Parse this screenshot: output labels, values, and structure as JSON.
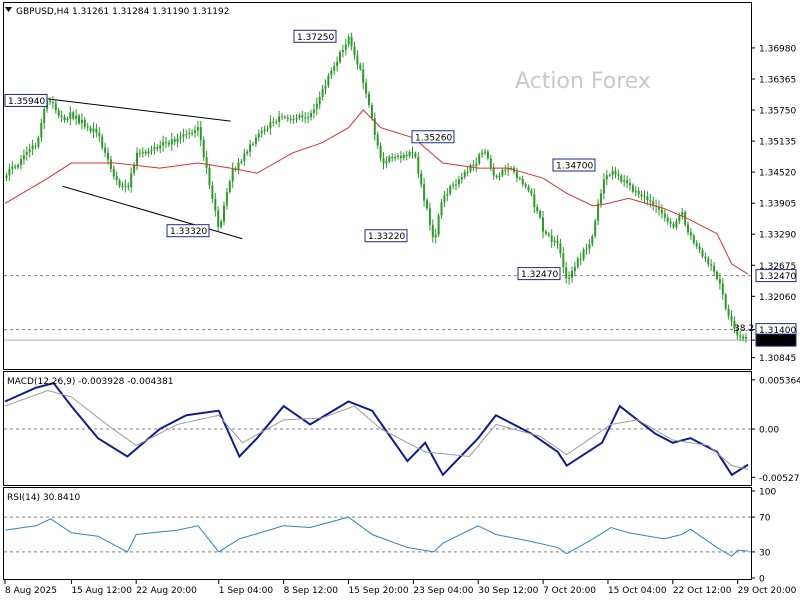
{
  "header": {
    "collapse_icon": "triangle-down-icon",
    "symbol_info": "GBPUSD,H4  1.31261 1.31284 1.31190 1.31192"
  },
  "watermark": "Action Forex",
  "colors": {
    "candle": "#2b9a2b",
    "ma": "#e03030",
    "macd_main": "#0b1f8f",
    "macd_signal": "#9c9c9c",
    "rsi": "#2f86c9",
    "label_border": "#1c2b8c",
    "grid_dash": "#808080"
  },
  "chart_data": [
    {
      "type": "candlestick",
      "title": "GBPUSD,H4",
      "ohlc_last": {
        "open": 1.31261,
        "high": 1.31284,
        "low": 1.3119,
        "close": 1.31192
      },
      "y_ticks": [
        "1.36980",
        "1.36365",
        "1.35750",
        "1.35135",
        "1.34520",
        "1.33905",
        "1.33290",
        "1.32675",
        "1.32060",
        "1.31400",
        "1.31192",
        "1.30845"
      ],
      "ylim": [
        1.3062,
        1.3787
      ],
      "price_tags": [
        "1.32470",
        "1.31400",
        "1.31192"
      ],
      "horizontal_levels": [
        1.3247,
        1.314
      ],
      "level_annotation": "38.2",
      "annotations": [
        {
          "text": "1.35940",
          "value": 1.3594
        },
        {
          "text": "1.37250",
          "value": 1.3725
        },
        {
          "text": "1.35260",
          "value": 1.3526
        },
        {
          "text": "1.33320",
          "value": 1.3332
        },
        {
          "text": "1.33220",
          "value": 1.3322
        },
        {
          "text": "1.34700",
          "value": 1.347
        },
        {
          "text": "1.32470",
          "value": 1.3247
        }
      ],
      "close_path": [
        {
          "date": "8 Aug 2025 00:00",
          "close": 1.344
        },
        {
          "date": "11 Aug 2025 12:00",
          "close": 1.35
        },
        {
          "date": "12 Aug 2025 20:00",
          "close": 1.3594
        },
        {
          "date": "14 Aug 2025 12:00",
          "close": 1.355
        },
        {
          "date": "15 Aug 2025 12:00",
          "close": 1.356
        },
        {
          "date": "18 Aug 2025 12:00",
          "close": 1.352
        },
        {
          "date": "20 Aug 2025 12:00",
          "close": 1.343
        },
        {
          "date": "21 Aug 2025 20:00",
          "close": 1.341
        },
        {
          "date": "22 Aug 2025 20:00",
          "close": 1.348
        },
        {
          "date": "27 Aug 2025 12:00",
          "close": 1.351
        },
        {
          "date": "28 Aug 2025 12:00",
          "close": 1.352
        },
        {
          "date": "29 Aug 2025 20:00",
          "close": 1.353
        },
        {
          "date": "1 Sep 2025 04:00",
          "close": 1.3332
        },
        {
          "date": "2 Sep 2025 12:00",
          "close": 1.344
        },
        {
          "date": "5 Sep 2025 12:00",
          "close": 1.352
        },
        {
          "date": "8 Sep 2025 12:00",
          "close": 1.356
        },
        {
          "date": "11 Sep 2025 12:00",
          "close": 1.357
        },
        {
          "date": "12 Sep 2025 20:00",
          "close": 1.362
        },
        {
          "date": "15 Sep 2025 20:00",
          "close": 1.3725
        },
        {
          "date": "17 Sep 2025 12:00",
          "close": 1.364
        },
        {
          "date": "19 Sep 2025 12:00",
          "close": 1.348
        },
        {
          "date": "22 Sep 2025 12:00",
          "close": 1.349
        },
        {
          "date": "23 Sep 2025 04:00",
          "close": 1.35
        },
        {
          "date": "25 Sep 2025 12:00",
          "close": 1.3322
        },
        {
          "date": "26 Sep 2025 12:00",
          "close": 1.341
        },
        {
          "date": "29 Sep 2025 20:00",
          "close": 1.347
        },
        {
          "date": "1 Oct 2025 04:00",
          "close": 1.35
        },
        {
          "date": "2 Oct 2025 12:00",
          "close": 1.344
        },
        {
          "date": "3 Oct 2025 20:00",
          "close": 1.347
        },
        {
          "date": "6 Oct 2025 12:00",
          "close": 1.341
        },
        {
          "date": "8 Oct 2025 04:00",
          "close": 1.333
        },
        {
          "date": "9 Oct 2025 12:00",
          "close": 1.332
        },
        {
          "date": "10 Oct 2025 12:00",
          "close": 1.3247
        },
        {
          "date": "13 Oct 2025 12:00",
          "close": 1.333
        },
        {
          "date": "14 Oct 2025 04:00",
          "close": 1.341
        },
        {
          "date": "15 Oct 2025 12:00",
          "close": 1.345
        },
        {
          "date": "16 Oct 2025 20:00",
          "close": 1.343
        },
        {
          "date": "20 Oct 2025 04:00",
          "close": 1.338
        },
        {
          "date": "22 Oct 2025 12:00",
          "close": 1.334
        },
        {
          "date": "23 Oct 2025 12:00",
          "close": 1.337
        },
        {
          "date": "24 Oct 2025 04:00",
          "close": 1.333
        },
        {
          "date": "27 Oct 2025 12:00",
          "close": 1.324
        },
        {
          "date": "28 Oct 2025 20:00",
          "close": 1.316
        },
        {
          "date": "29 Oct 2025 20:00",
          "close": 1.312
        },
        {
          "date": "31 Oct 2025 00:00",
          "close": 1.3119
        }
      ],
      "ma_path": [
        {
          "date": "8 Aug 2025 00:00",
          "value": 1.339
        },
        {
          "date": "12 Aug 2025 20:00",
          "value": 1.344
        },
        {
          "date": "15 Aug 2025 12:00",
          "value": 1.347
        },
        {
          "date": "20 Aug 2025 12:00",
          "value": 1.347
        },
        {
          "date": "25 Aug 2025 12:00",
          "value": 1.346
        },
        {
          "date": "29 Aug 2025 20:00",
          "value": 1.347
        },
        {
          "date": "2 Sep 2025 12:00",
          "value": 1.346
        },
        {
          "date": "5 Sep 2025 12:00",
          "value": 1.345
        },
        {
          "date": "9 Sep 2025 12:00",
          "value": 1.349
        },
        {
          "date": "12 Sep 2025 20:00",
          "value": 1.351
        },
        {
          "date": "15 Sep 2025 20:00",
          "value": 1.354
        },
        {
          "date": "17 Sep 2025 12:00",
          "value": 1.3575
        },
        {
          "date": "19 Sep 2025 12:00",
          "value": 1.354
        },
        {
          "date": "23 Sep 2025 04:00",
          "value": 1.352
        },
        {
          "date": "26 Sep 2025 12:00",
          "value": 1.347
        },
        {
          "date": "30 Sep 2025 12:00",
          "value": 1.346
        },
        {
          "date": "3 Oct 2025 20:00",
          "value": 1.346
        },
        {
          "date": "7 Oct 2025 20:00",
          "value": 1.344
        },
        {
          "date": "10 Oct 2025 12:00",
          "value": 1.341
        },
        {
          "date": "13 Oct 2025 12:00",
          "value": 1.3385
        },
        {
          "date": "15 Oct 2025 04:00",
          "value": 1.339
        },
        {
          "date": "17 Oct 2025 12:00",
          "value": 1.34
        },
        {
          "date": "21 Oct 2025 12:00",
          "value": 1.338
        },
        {
          "date": "24 Oct 2025 04:00",
          "value": 1.336
        },
        {
          "date": "27 Oct 2025 12:00",
          "value": 1.333
        },
        {
          "date": "29 Oct 2025 04:00",
          "value": 1.327
        },
        {
          "date": "31 Oct 2025 00:00",
          "value": 1.325
        }
      ],
      "trendlines": [
        {
          "from": {
            "date": "12 Aug 2025 20:00",
            "value": 1.3597
          },
          "to": {
            "date": "2 Sep 2025 12:00",
            "value": 1.3553
          }
        },
        {
          "from": {
            "date": "14 Aug 2025 12:00",
            "value": 1.3424
          },
          "to": {
            "date": "3 Sep 2025 20:00",
            "value": 1.332
          }
        }
      ]
    },
    {
      "type": "line",
      "title": "MACD(12,26,9) -0.003928 -0.004381",
      "y_ticks": [
        "0.005364",
        "0.00",
        "-0.005274"
      ],
      "ylim": [
        -0.006,
        0.006
      ],
      "zero_line": 0,
      "series": [
        {
          "name": "main",
          "color_key": "macd_main",
          "values": [
            {
              "date": "8 Aug 2025 00:00",
              "value": 0.003
            },
            {
              "date": "11 Aug 2025 12:00",
              "value": 0.0045
            },
            {
              "date": "13 Aug 2025 12:00",
              "value": 0.005
            },
            {
              "date": "15 Aug 2025 12:00",
              "value": 0.0025
            },
            {
              "date": "18 Aug 2025 12:00",
              "value": -0.001
            },
            {
              "date": "21 Aug 2025 20:00",
              "value": -0.003
            },
            {
              "date": "25 Aug 2025 12:00",
              "value": 0.0
            },
            {
              "date": "28 Aug 2025 12:00",
              "value": 0.0015
            },
            {
              "date": "1 Sep 2025 04:00",
              "value": 0.002
            },
            {
              "date": "3 Sep 2025 12:00",
              "value": -0.003
            },
            {
              "date": "5 Sep 2025 12:00",
              "value": -0.001
            },
            {
              "date": "8 Sep 2025 12:00",
              "value": 0.0025
            },
            {
              "date": "11 Sep 2025 12:00",
              "value": 0.0005
            },
            {
              "date": "15 Sep 2025 20:00",
              "value": 0.003
            },
            {
              "date": "18 Sep 2025 12:00",
              "value": 0.002
            },
            {
              "date": "22 Sep 2025 12:00",
              "value": -0.0035
            },
            {
              "date": "24 Sep 2025 12:00",
              "value": -0.0015
            },
            {
              "date": "26 Sep 2025 12:00",
              "value": -0.005
            },
            {
              "date": "30 Sep 2025 12:00",
              "value": -0.001
            },
            {
              "date": "2 Oct 2025 12:00",
              "value": 0.0015
            },
            {
              "date": "6 Oct 2025 12:00",
              "value": -0.0005
            },
            {
              "date": "9 Oct 2025 12:00",
              "value": -0.0025
            },
            {
              "date": "10 Oct 2025 12:00",
              "value": -0.004
            },
            {
              "date": "14 Oct 2025 12:00",
              "value": -0.0015
            },
            {
              "date": "16 Oct 2025 12:00",
              "value": 0.0025
            },
            {
              "date": "20 Oct 2025 12:00",
              "value": -0.0005
            },
            {
              "date": "22 Oct 2025 12:00",
              "value": -0.0015
            },
            {
              "date": "24 Oct 2025 12:00",
              "value": -0.001
            },
            {
              "date": "27 Oct 2025 12:00",
              "value": -0.0025
            },
            {
              "date": "29 Oct 2025 04:00",
              "value": -0.005
            },
            {
              "date": "31 Oct 2025 00:00",
              "value": -0.0039
            }
          ]
        },
        {
          "name": "signal",
          "color_key": "macd_signal",
          "values": [
            {
              "date": "8 Aug 2025 00:00",
              "value": 0.0025
            },
            {
              "date": "12 Aug 2025 20:00",
              "value": 0.0042
            },
            {
              "date": "15 Aug 2025 12:00",
              "value": 0.0035
            },
            {
              "date": "19 Aug 2025 12:00",
              "value": 0.0005
            },
            {
              "date": "22 Aug 2025 20:00",
              "value": -0.0018
            },
            {
              "date": "27 Aug 2025 12:00",
              "value": 0.0005
            },
            {
              "date": "1 Sep 2025 04:00",
              "value": 0.0015
            },
            {
              "date": "3 Sep 2025 20:00",
              "value": -0.0015
            },
            {
              "date": "8 Sep 2025 12:00",
              "value": 0.001
            },
            {
              "date": "12 Sep 2025 20:00",
              "value": 0.0012
            },
            {
              "date": "16 Sep 2025 12:00",
              "value": 0.0025
            },
            {
              "date": "19 Sep 2025 12:00",
              "value": 0.0
            },
            {
              "date": "24 Sep 2025 12:00",
              "value": -0.0025
            },
            {
              "date": "29 Sep 2025 12:00",
              "value": -0.003
            },
            {
              "date": "2 Oct 2025 12:00",
              "value": 0.0005
            },
            {
              "date": "7 Oct 2025 12:00",
              "value": -0.0008
            },
            {
              "date": "10 Oct 2025 12:00",
              "value": -0.0028
            },
            {
              "date": "15 Oct 2025 12:00",
              "value": 0.0005
            },
            {
              "date": "18 Oct 2025 12:00",
              "value": 0.001
            },
            {
              "date": "22 Oct 2025 12:00",
              "value": -0.0012
            },
            {
              "date": "26 Oct 2025 12:00",
              "value": -0.0018
            },
            {
              "date": "29 Oct 2025 04:00",
              "value": -0.004
            },
            {
              "date": "31 Oct 2025 00:00",
              "value": -0.0044
            }
          ]
        }
      ]
    },
    {
      "type": "line",
      "title": "RSI(14) 30.8410",
      "y_ticks": [
        "100",
        "70",
        "30",
        "0"
      ],
      "ylim": [
        0,
        100
      ],
      "levels": [
        70,
        30
      ],
      "series": [
        {
          "name": "RSI(14)",
          "color_key": "rsi",
          "values": [
            {
              "date": "8 Aug 2025 00:00",
              "value": 55
            },
            {
              "date": "11 Aug 2025 12:00",
              "value": 60
            },
            {
              "date": "13 Aug 2025 04:00",
              "value": 68
            },
            {
              "date": "15 Aug 2025 12:00",
              "value": 52
            },
            {
              "date": "18 Aug 2025 12:00",
              "value": 48
            },
            {
              "date": "21 Aug 2025 20:00",
              "value": 30
            },
            {
              "date": "22 Aug 2025 20:00",
              "value": 50
            },
            {
              "date": "27 Aug 2025 12:00",
              "value": 55
            },
            {
              "date": "29 Aug 2025 20:00",
              "value": 60
            },
            {
              "date": "1 Sep 2025 04:00",
              "value": 30
            },
            {
              "date": "3 Sep 2025 12:00",
              "value": 45
            },
            {
              "date": "8 Sep 2025 12:00",
              "value": 60
            },
            {
              "date": "11 Sep 2025 12:00",
              "value": 58
            },
            {
              "date": "15 Sep 2025 20:00",
              "value": 70
            },
            {
              "date": "18 Sep 2025 12:00",
              "value": 50
            },
            {
              "date": "22 Sep 2025 12:00",
              "value": 35
            },
            {
              "date": "25 Sep 2025 12:00",
              "value": 30
            },
            {
              "date": "26 Sep 2025 12:00",
              "value": 40
            },
            {
              "date": "30 Sep 2025 12:00",
              "value": 60
            },
            {
              "date": "2 Oct 2025 12:00",
              "value": 50
            },
            {
              "date": "6 Oct 2025 12:00",
              "value": 42
            },
            {
              "date": "9 Oct 2025 12:00",
              "value": 35
            },
            {
              "date": "10 Oct 2025 12:00",
              "value": 28
            },
            {
              "date": "13 Oct 2025 12:00",
              "value": 45
            },
            {
              "date": "15 Oct 2025 12:00",
              "value": 58
            },
            {
              "date": "17 Oct 2025 12:00",
              "value": 52
            },
            {
              "date": "21 Oct 2025 12:00",
              "value": 45
            },
            {
              "date": "23 Oct 2025 12:00",
              "value": 50
            },
            {
              "date": "24 Oct 2025 12:00",
              "value": 56
            },
            {
              "date": "27 Oct 2025 12:00",
              "value": 35
            },
            {
              "date": "29 Oct 2025 04:00",
              "value": 25
            },
            {
              "date": "29 Oct 2025 20:00",
              "value": 32
            },
            {
              "date": "31 Oct 2025 00:00",
              "value": 30.841
            }
          ]
        }
      ]
    }
  ],
  "x_axis": {
    "start": "8 Aug 2025 00:00",
    "end": "31 Oct 2025 00:00",
    "ticks": [
      {
        "label": "8 Aug 2025",
        "date": "8 Aug 2025 00:00"
      },
      {
        "label": "15 Aug 12:00",
        "date": "15 Aug 2025 12:00"
      },
      {
        "label": "22 Aug 20:00",
        "date": "22 Aug 2025 20:00"
      },
      {
        "label": "1 Sep 04:00",
        "date": "1 Sep 2025 04:00"
      },
      {
        "label": "8 Sep 12:00",
        "date": "8 Sep 2025 12:00"
      },
      {
        "label": "15 Sep 20:00",
        "date": "15 Sep 2025 20:00"
      },
      {
        "label": "23 Sep 04:00",
        "date": "23 Sep 2025 04:00"
      },
      {
        "label": "30 Sep 12:00",
        "date": "30 Sep 2025 12:00"
      },
      {
        "label": "7 Oct 20:00",
        "date": "7 Oct 2025 20:00"
      },
      {
        "label": "15 Oct 04:00",
        "date": "15 Oct 2025 04:00"
      },
      {
        "label": "22 Oct 12:00",
        "date": "22 Oct 2025 12:00"
      },
      {
        "label": "29 Oct 20:00",
        "date": "29 Oct 2025 20:00"
      }
    ]
  }
}
